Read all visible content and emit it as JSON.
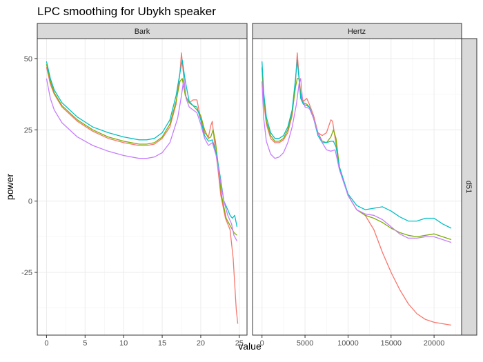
{
  "chart_data": {
    "type": "line",
    "title": "LPC smoothing for Ubykh speaker",
    "xlabel": "value",
    "ylabel": "power",
    "row_strip": "d51",
    "grid": true,
    "legend": "none",
    "ylim": [
      -47,
      57
    ],
    "yticks": [
      50,
      25,
      0,
      -25
    ],
    "ytick_labels": [
      "50",
      "25",
      "0",
      "-25"
    ],
    "series_colors": [
      "#F8766D",
      "#7CAE00",
      "#00BFC4",
      "#C77CFF"
    ],
    "panels": [
      {
        "strip": "Bark",
        "xlim": [
          -1.2,
          26
        ],
        "xticks": [
          0,
          5,
          10,
          15,
          20,
          25
        ],
        "xtick_labels": [
          "0",
          "5",
          "10",
          "15",
          "20",
          "25"
        ],
        "series": [
          {
            "color": "#F8766D",
            "x": [
              0,
              0.5,
              1,
              2,
              4,
              6,
              8,
              10,
              12,
              13,
              14,
              15,
              16,
              16.8,
              17.3,
              17.5,
              17.8,
              18.1,
              18.5,
              19,
              19.5,
              20,
              20.5,
              21,
              21.3,
              21.5,
              21.8,
              22.2,
              22.6,
              23.2,
              23.8,
              24.2,
              24.6,
              24.8
            ],
            "y": [
              47,
              41,
              37.5,
              33,
              28,
              24.5,
              22,
              20.5,
              19.5,
              19.5,
              20,
              22,
              26,
              34,
              45,
              52,
              43,
              36.5,
              34.5,
              35.5,
              35.5,
              29,
              24,
              22.5,
              26.5,
              28,
              20,
              12,
              2,
              -6,
              -10,
              -20,
              -38,
              -43
            ]
          },
          {
            "color": "#7CAE00",
            "x": [
              0,
              0.5,
              1,
              2,
              4,
              6,
              8,
              10,
              12,
              13,
              14,
              15,
              16,
              16.8,
              17.3,
              17.6,
              18,
              18.5,
              19,
              19.5,
              20,
              20.5,
              21,
              21.3,
              21.6,
              21.9,
              22.3,
              22.7,
              23.3,
              23.9,
              24.3,
              24.7
            ],
            "y": [
              48,
              42,
              38,
              33.5,
              28.5,
              25,
              22.5,
              21,
              20,
              20,
              20.5,
              22.5,
              27,
              35,
              42,
              43,
              37,
              34.5,
              33.5,
              32,
              30,
              25,
              22,
              22.5,
              25,
              21,
              12,
              2,
              -6,
              -9,
              -11,
              -12
            ]
          },
          {
            "color": "#00BFC4",
            "x": [
              0,
              0.5,
              1,
              2,
              4,
              6,
              8,
              10,
              12,
              13,
              14,
              15,
              16,
              16.8,
              17.3,
              17.6,
              18,
              18.5,
              19,
              19.5,
              20,
              20.5,
              21,
              21.5,
              22,
              22.5,
              23,
              23.5,
              23.8,
              24.1,
              24.4,
              24.7
            ],
            "y": [
              49,
              43,
              39,
              34.5,
              29.5,
              26,
              24,
              22.5,
              21.5,
              21.5,
              22,
              24,
              28.5,
              37,
              45,
              49.5,
              42,
              35,
              33.5,
              33,
              28.5,
              23,
              21,
              21.5,
              17,
              9,
              0,
              -3,
              -5,
              -6,
              -5,
              -9
            ]
          },
          {
            "color": "#C77CFF",
            "x": [
              0,
              0.5,
              1,
              2,
              4,
              6,
              8,
              10,
              12,
              13,
              14,
              15,
              16,
              17,
              17.5,
              17.8,
              18.1,
              18.5,
              19,
              19.5,
              20,
              20.5,
              21,
              21.5,
              22,
              22.5,
              23,
              23.5,
              24,
              24.3,
              24.7
            ],
            "y": [
              43,
              36,
              32,
              27.5,
              22.5,
              19.5,
              17.5,
              16,
              15,
              15,
              15.5,
              17,
              20.5,
              29,
              37,
              43,
              36,
              33,
              32,
              31,
              27,
              22,
              19.5,
              20.5,
              16,
              8,
              0,
              -5,
              -8,
              -12,
              -14
            ]
          }
        ]
      },
      {
        "strip": "Hertz",
        "xlim": [
          -1100,
          23200
        ],
        "xticks": [
          0,
          5000,
          10000,
          15000,
          20000
        ],
        "xtick_labels": [
          "0",
          "5000",
          "10000",
          "15000",
          "20000"
        ],
        "series": [
          {
            "color": "#F8766D",
            "x": [
              0,
              200,
              500,
              1000,
              1500,
              2000,
              2500,
              3000,
              3500,
              3900,
              4100,
              4300,
              4500,
              4800,
              5200,
              5500,
              6000,
              6500,
              7000,
              7500,
              8000,
              8200,
              8500,
              9000,
              10000,
              11000,
              12000,
              13000,
              14000,
              15000,
              16000,
              17000,
              18000,
              19000,
              20000,
              21000,
              22000
            ],
            "y": [
              47,
              35,
              27,
              22,
              20.5,
              20.5,
              21.5,
              24,
              30,
              42,
              52,
              44,
              38,
              35,
              36,
              34,
              30,
              24,
              23,
              24,
              28.5,
              28,
              22,
              12,
              2,
              -3,
              -5,
              -10,
              -18,
              -25,
              -31,
              -36,
              -39.5,
              -41.5,
              -42.5,
              -43,
              -43.5
            ]
          },
          {
            "color": "#7CAE00",
            "x": [
              0,
              200,
              500,
              1000,
              1500,
              2000,
              2500,
              3000,
              3500,
              3900,
              4100,
              4300,
              4500,
              4800,
              5200,
              5500,
              6000,
              6500,
              7000,
              7500,
              8000,
              8300,
              8600,
              9000,
              10000,
              11000,
              12000,
              13000,
              14000,
              15000,
              16000,
              17000,
              18000,
              19000,
              20000,
              21000,
              22000
            ],
            "y": [
              47,
              37,
              28,
              23,
              21,
              21,
              22,
              25,
              31,
              40,
              43,
              43,
              37,
              34.5,
              34,
              33,
              29,
              24,
              21,
              20.5,
              22.5,
              25,
              22,
              12,
              2,
              -3,
              -5,
              -6,
              -7.5,
              -9.5,
              -11,
              -12,
              -12.5,
              -12,
              -11.5,
              -12.5,
              -13.5
            ]
          },
          {
            "color": "#00BFC4",
            "x": [
              0,
              200,
              500,
              1000,
              1500,
              2000,
              2500,
              3000,
              3500,
              3900,
              4100,
              4300,
              4500,
              4800,
              5200,
              5500,
              6000,
              6500,
              7000,
              7500,
              8000,
              8300,
              8600,
              9000,
              10000,
              11000,
              12000,
              13000,
              14000,
              15000,
              16000,
              17000,
              18000,
              19000,
              20000,
              21000,
              22000
            ],
            "y": [
              49,
              38,
              29.5,
              24,
              22,
              22,
              23,
              26,
              32,
              43,
              49.5,
              43,
              36,
              34,
              33.5,
              33,
              29,
              23,
              20.5,
              20.5,
              21,
              21,
              19,
              12,
              2.5,
              -1.5,
              -3,
              -2.5,
              -2,
              -3.5,
              -5.5,
              -7,
              -7,
              -6,
              -6,
              -8,
              -9.5
            ]
          },
          {
            "color": "#C77CFF",
            "x": [
              0,
              200,
              500,
              1000,
              1500,
              2000,
              2500,
              3000,
              3500,
              4000,
              4300,
              4500,
              4700,
              5000,
              5500,
              6000,
              6500,
              7000,
              7500,
              8000,
              8500,
              9000,
              10000,
              11000,
              12000,
              13000,
              14000,
              15000,
              16000,
              17000,
              18000,
              19000,
              20000,
              21000,
              22000
            ],
            "y": [
              42,
              29,
              21,
              16.5,
              15,
              15.5,
              17,
              20.5,
              26,
              34,
              41,
              43,
              36,
              33,
              32.5,
              29,
              24,
              20.5,
              18,
              17.5,
              18,
              11,
              2,
              -3,
              -4.5,
              -5,
              -6.5,
              -9,
              -11.5,
              -13,
              -13,
              -12.5,
              -12.5,
              -13.5,
              -14.5
            ]
          }
        ]
      }
    ]
  }
}
